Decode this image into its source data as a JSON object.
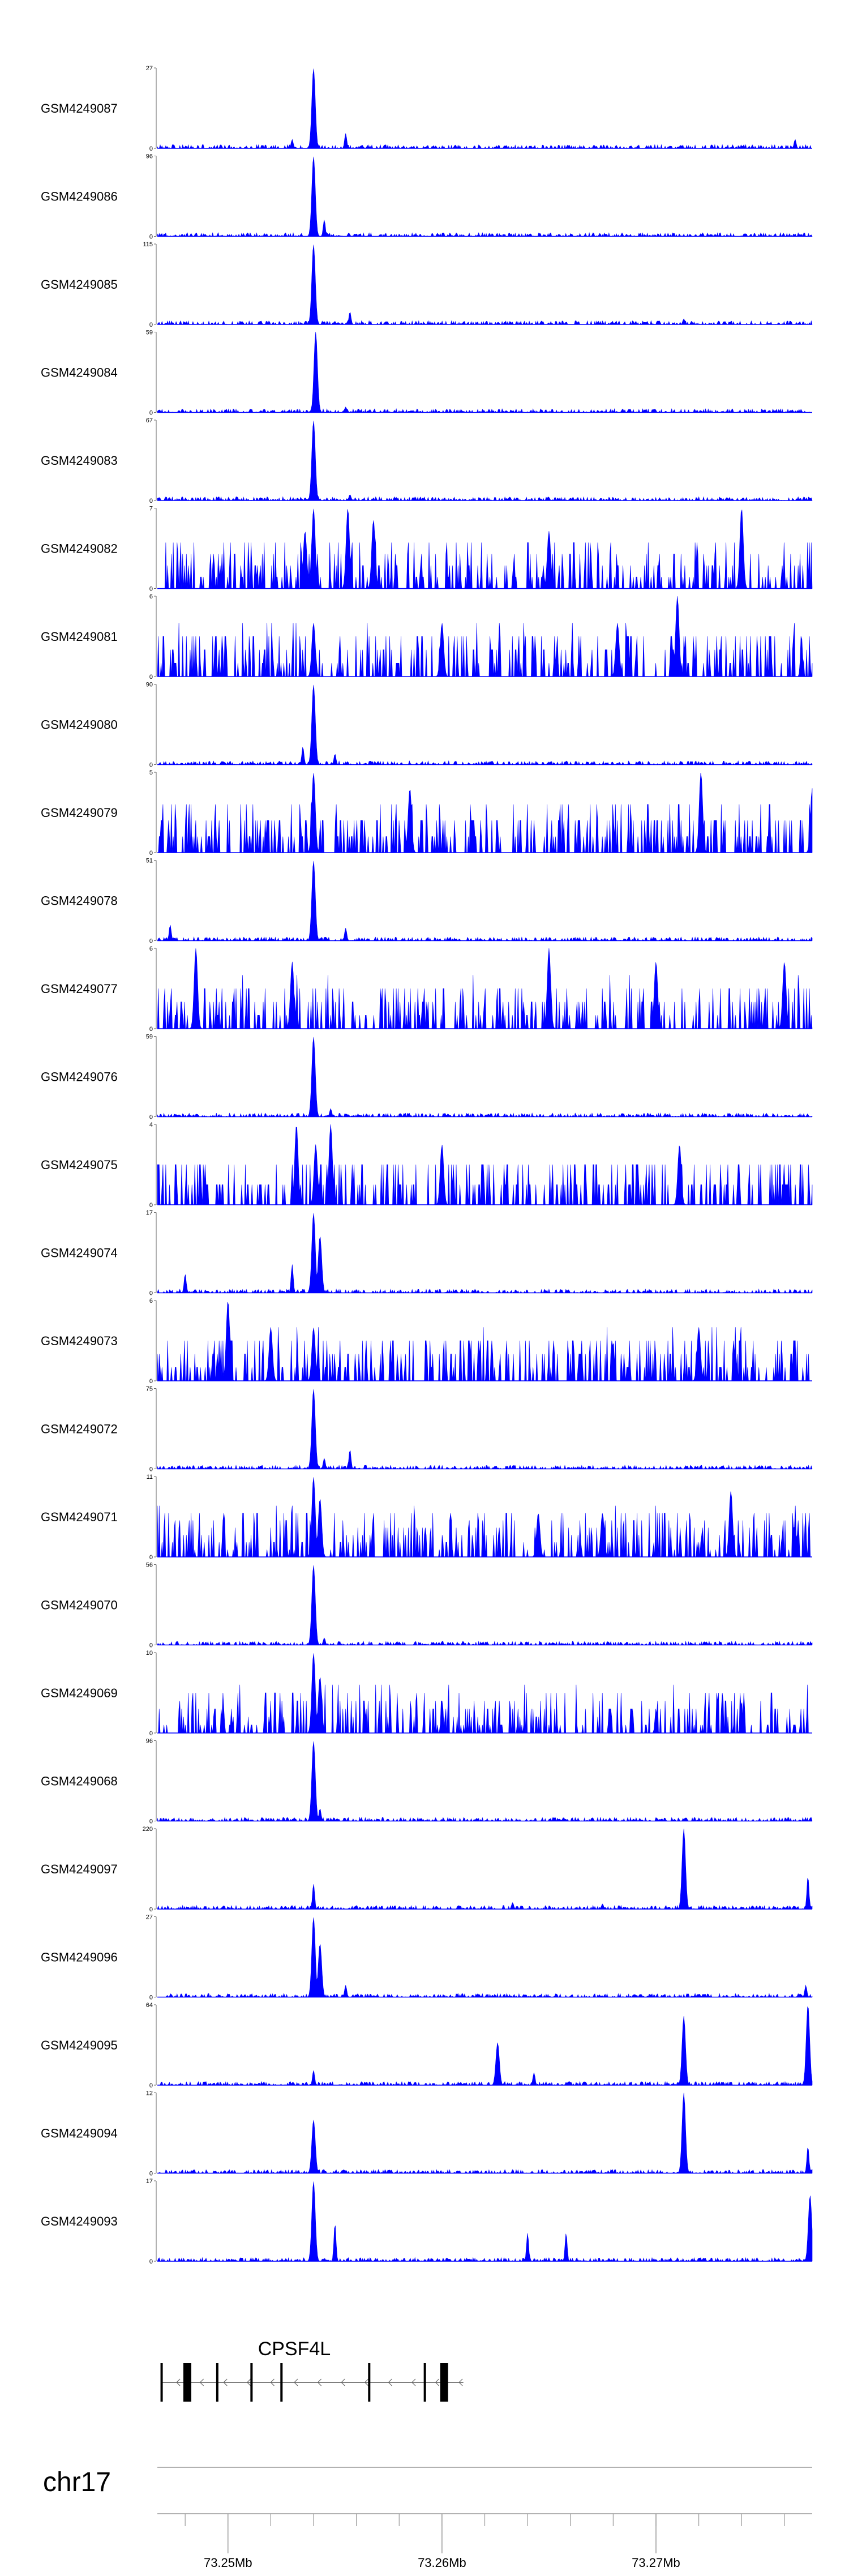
{
  "chart_data": {
    "type": "area",
    "color": "#0000ff",
    "x_range": [
      73.2467,
      73.2773
    ],
    "x_unit": "Mb",
    "chromosome": "chr17",
    "series": [
      {
        "name": "GSM4249087",
        "ymin": 0,
        "ymax": 27,
        "peaks": [
          [
            73.254,
            27.0
          ],
          [
            73.2555,
            5.0
          ],
          [
            73.253,
            3.0
          ],
          [
            73.2765,
            3.0
          ]
        ]
      },
      {
        "name": "GSM4249086",
        "ymin": 0,
        "ymax": 96,
        "peaks": [
          [
            73.254,
            96.0
          ],
          [
            73.2545,
            20.0
          ]
        ]
      },
      {
        "name": "GSM4249085",
        "ymin": 0,
        "ymax": 115,
        "peaks": [
          [
            73.254,
            115.0
          ],
          [
            73.2557,
            18.0
          ],
          [
            73.2713,
            8.0
          ]
        ]
      },
      {
        "name": "GSM4249084",
        "ymin": 0,
        "ymax": 59,
        "peaks": [
          [
            73.2541,
            59.0
          ],
          [
            73.2555,
            4.0
          ]
        ]
      },
      {
        "name": "GSM4249083",
        "ymin": 0,
        "ymax": 67,
        "peaks": [
          [
            73.254,
            67.0
          ],
          [
            73.2557,
            5.0
          ]
        ]
      },
      {
        "name": "GSM4249082",
        "ymin": 0,
        "ymax": 7,
        "peaks": [
          [
            73.2536,
            5.0
          ],
          [
            73.254,
            7.0
          ],
          [
            73.2556,
            7.0
          ],
          [
            73.274,
            7.0
          ],
          [
            73.2568,
            6.0
          ],
          [
            73.265,
            5.0
          ]
        ]
      },
      {
        "name": "GSM4249081",
        "ymin": 0,
        "ymax": 6,
        "peaks": [
          [
            73.271,
            6.0
          ],
          [
            73.254,
            4.0
          ],
          [
            73.26,
            4.0
          ],
          [
            73.2682,
            4.0
          ],
          [
            73.2768,
            3.0
          ]
        ]
      },
      {
        "name": "GSM4249080",
        "ymin": 0,
        "ymax": 90,
        "peaks": [
          [
            73.254,
            90.0
          ],
          [
            73.2535,
            20.0
          ],
          [
            73.255,
            12.0
          ]
        ]
      },
      {
        "name": "GSM4249079",
        "ymin": 0,
        "ymax": 5,
        "peaks": [
          [
            73.254,
            5.0
          ],
          [
            73.2585,
            4.0
          ],
          [
            73.2721,
            5.0
          ],
          [
            73.2773,
            4.0
          ]
        ]
      },
      {
        "name": "GSM4249078",
        "ymin": 0,
        "ymax": 51,
        "peaks": [
          [
            73.254,
            51.0
          ],
          [
            73.2555,
            8.0
          ],
          [
            73.2473,
            10.0
          ]
        ]
      },
      {
        "name": "GSM4249077",
        "ymin": 0,
        "ymax": 6,
        "peaks": [
          [
            73.2485,
            6.0
          ],
          [
            73.253,
            5.0
          ],
          [
            73.265,
            6.0
          ],
          [
            73.27,
            5.0
          ],
          [
            73.276,
            5.0
          ]
        ]
      },
      {
        "name": "GSM4249076",
        "ymin": 0,
        "ymax": 59,
        "peaks": [
          [
            73.254,
            59.0
          ],
          [
            73.2548,
            6.0
          ]
        ]
      },
      {
        "name": "GSM4249075",
        "ymin": 0,
        "ymax": 4,
        "peaks": [
          [
            73.2532,
            4.0
          ],
          [
            73.2541,
            3.0
          ],
          [
            73.2548,
            4.0
          ],
          [
            73.26,
            3.0
          ],
          [
            73.2711,
            3.0
          ]
        ]
      },
      {
        "name": "GSM4249074",
        "ymin": 0,
        "ymax": 17,
        "peaks": [
          [
            73.254,
            17.0
          ],
          [
            73.2543,
            12.0
          ],
          [
            73.253,
            6.0
          ],
          [
            73.248,
            4.0
          ]
        ]
      },
      {
        "name": "GSM4249073",
        "ymin": 0,
        "ymax": 6,
        "peaks": [
          [
            73.25,
            6.0
          ],
          [
            73.252,
            4.0
          ],
          [
            73.254,
            4.0
          ],
          [
            73.272,
            4.0
          ],
          [
            73.268,
            3.0
          ]
        ]
      },
      {
        "name": "GSM4249072",
        "ymin": 0,
        "ymax": 75,
        "peaks": [
          [
            73.254,
            75.0
          ],
          [
            73.2557,
            18.0
          ],
          [
            73.2545,
            10.0
          ]
        ]
      },
      {
        "name": "GSM4249071",
        "ymin": 0,
        "ymax": 11,
        "peaks": [
          [
            73.254,
            11.0
          ],
          [
            73.2543,
            8.0
          ],
          [
            73.2735,
            9.0
          ],
          [
            73.2645,
            6.0
          ],
          [
            73.2675,
            6.0
          ],
          [
            73.2765,
            5.0
          ]
        ]
      },
      {
        "name": "GSM4249070",
        "ymin": 0,
        "ymax": 56,
        "peaks": [
          [
            73.254,
            56.0
          ],
          [
            73.2545,
            5.0
          ]
        ]
      },
      {
        "name": "GSM4249069",
        "ymin": 0,
        "ymax": 10,
        "peaks": [
          [
            73.254,
            10.0
          ],
          [
            73.2543,
            7.0
          ],
          [
            73.26,
            4.0
          ],
          [
            73.27,
            3.0
          ],
          [
            73.274,
            4.0
          ]
        ]
      },
      {
        "name": "GSM4249068",
        "ymin": 0,
        "ymax": 96,
        "peaks": [
          [
            73.254,
            96.0
          ],
          [
            73.2543,
            15.0
          ]
        ]
      },
      {
        "name": "GSM4249097",
        "ymin": 0,
        "ymax": 220,
        "peaks": [
          [
            73.2713,
            220.0
          ],
          [
            73.254,
            70.0
          ],
          [
            73.2771,
            90.0
          ],
          [
            73.2633,
            18.0
          ],
          [
            73.2675,
            14.0
          ]
        ]
      },
      {
        "name": "GSM4249096",
        "ymin": 0,
        "ymax": 27,
        "peaks": [
          [
            73.254,
            27.0
          ],
          [
            73.2543,
            18.0
          ],
          [
            73.2555,
            4.0
          ],
          [
            73.277,
            4.0
          ]
        ]
      },
      {
        "name": "GSM4249095",
        "ymin": 0,
        "ymax": 64,
        "peaks": [
          [
            73.2771,
            64.0
          ],
          [
            73.2713,
            55.0
          ],
          [
            73.2626,
            34.0
          ],
          [
            73.254,
            12.0
          ],
          [
            73.2643,
            10.0
          ]
        ]
      },
      {
        "name": "GSM4249094",
        "ymin": 0,
        "ymax": 12,
        "peaks": [
          [
            73.2713,
            12.0
          ],
          [
            73.254,
            8.0
          ],
          [
            73.2771,
            4.0
          ]
        ]
      },
      {
        "name": "GSM4249093",
        "ymin": 0,
        "ymax": 17,
        "peaks": [
          [
            73.254,
            17.0
          ],
          [
            73.2772,
            14.0
          ],
          [
            73.255,
            8.0
          ],
          [
            73.264,
            6.0
          ],
          [
            73.2658,
            6.0
          ]
        ]
      }
    ],
    "gene": {
      "name": "CPSF4L",
      "strand": "-",
      "start": 73.2469,
      "end": 73.261,
      "exons": [
        73.2469,
        73.2481,
        73.2495,
        73.2511,
        73.2525,
        73.2566,
        73.2592,
        73.2601
      ]
    },
    "axis": {
      "ticks": [
        73.25,
        73.26,
        73.27
      ],
      "tick_labels": [
        "73.25Mb",
        "73.26Mb",
        "73.27Mb"
      ],
      "minor_step": 0.002
    }
  }
}
